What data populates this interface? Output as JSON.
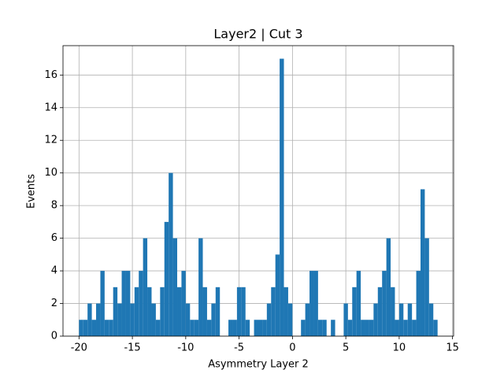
{
  "chart_data": {
    "type": "histogram",
    "title": "Layer2 | Cut 3",
    "xlabel": "Asymmetry Layer 2",
    "ylabel": "Events",
    "color": "#1f77b4",
    "grid": true,
    "bins": [
      -20,
      -19.6,
      -19.2,
      -18.8,
      -18.4,
      -18,
      -17.6,
      -17.2,
      -16.8,
      -16.4,
      -16,
      -15.6,
      -15.2,
      -14.8,
      -14.4,
      -14,
      -13.6,
      -13.2,
      -12.8,
      -12.4,
      -12,
      -11.6,
      -11.2,
      -10.8,
      -10.4,
      -10,
      -9.6,
      -9.2,
      -8.8,
      -8.4,
      -8,
      -7.6,
      -7.2,
      -6.8,
      -6.4,
      -6,
      -5.6,
      -5.2,
      -4.8,
      -4.4,
      -4,
      -3.6,
      -3.2,
      -2.8,
      -2.4,
      -2,
      -1.6,
      -1.2,
      -0.8,
      -0.4,
      0,
      0.4,
      0.8,
      1.2,
      1.6,
      2,
      2.4,
      2.8,
      3.2,
      3.6,
      4,
      4.4,
      4.8,
      5.2,
      5.6,
      6,
      6.4,
      6.8,
      7.2,
      7.6,
      8,
      8.4,
      8.8,
      9.2,
      9.6,
      10,
      10.4,
      10.8,
      11.2,
      11.6,
      12,
      12.4,
      12.8,
      13.2,
      13.6
    ],
    "values": [
      1,
      1,
      2,
      1,
      2,
      4,
      1,
      1,
      3,
      2,
      4,
      4,
      2,
      3,
      4,
      6,
      3,
      2,
      1,
      3,
      7,
      10,
      6,
      3,
      4,
      2,
      1,
      1,
      6,
      3,
      1,
      2,
      3,
      0,
      0,
      1,
      1,
      3,
      3,
      1,
      0,
      1,
      1,
      1,
      2,
      3,
      5,
      17,
      3,
      2,
      0,
      0,
      1,
      2,
      4,
      4,
      1,
      1,
      0,
      1,
      0,
      0,
      2,
      1,
      3,
      4,
      1,
      1,
      1,
      2,
      3,
      4,
      6,
      3,
      1,
      2,
      1,
      2,
      1,
      4,
      9,
      6,
      2,
      1
    ],
    "xlim": [
      -21.5,
      15.1
    ],
    "ylim": [
      0,
      17.8
    ],
    "xticks": [
      -20,
      -15,
      -10,
      -5,
      0,
      5,
      10,
      15
    ],
    "yticks": [
      0,
      2,
      4,
      6,
      8,
      10,
      12,
      14,
      16
    ]
  }
}
